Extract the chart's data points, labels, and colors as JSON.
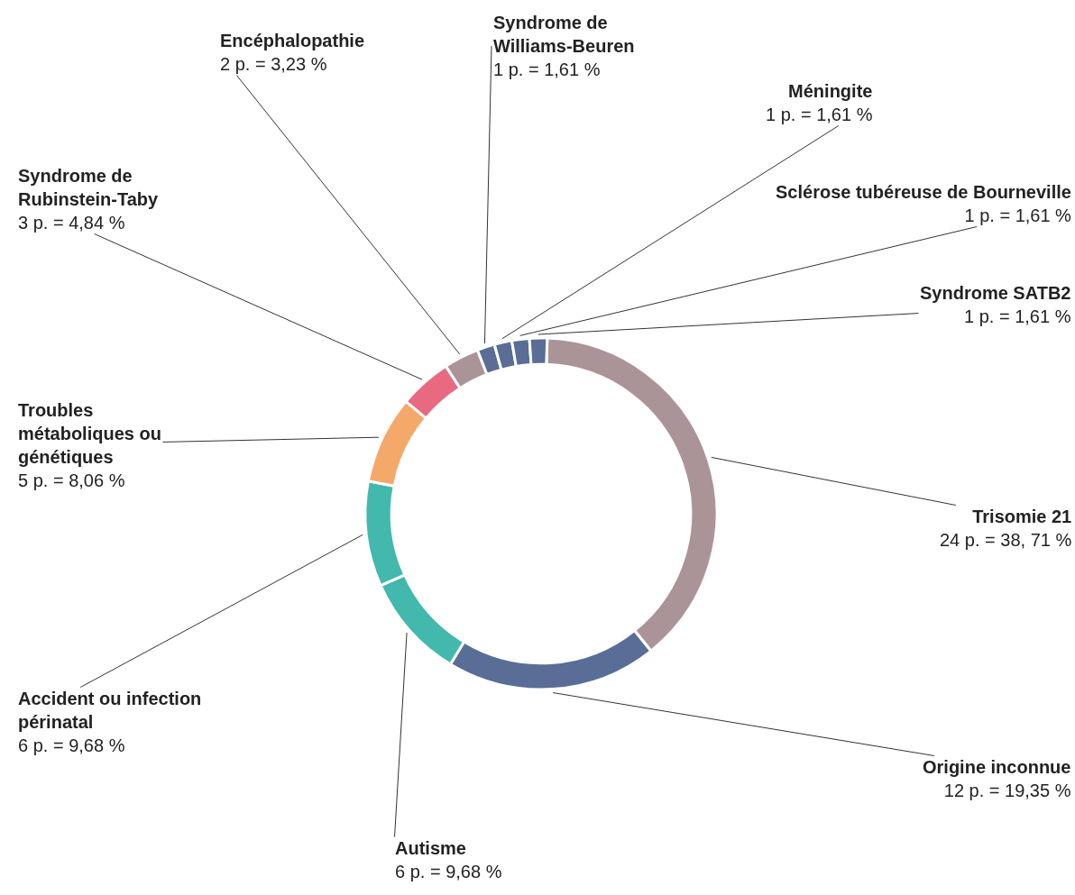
{
  "chart_data": {
    "type": "donut",
    "categories": [
      "Trisomie 21",
      "Origine inconnue",
      "Autisme",
      "Accident ou infection périnatal",
      "Troubles métaboliques ou génétiques",
      "Syndrome de Rubinstein-Taby",
      "Encéphalopathie",
      "Syndrome de Williams-Beuren",
      "Méningite",
      "Sclérose tubéreuse de Bourneville",
      "Syndrome SATB2"
    ],
    "values": [
      24,
      12,
      6,
      6,
      5,
      3,
      2,
      1,
      1,
      1,
      1
    ],
    "colors": [
      "#ab9498",
      "#596d96",
      "#43b8ad",
      "#43b8ad",
      "#f4a96a",
      "#e96a80",
      "#ab9498",
      "#596d96",
      "#596d96",
      "#596d96",
      "#596d96"
    ],
    "value_labels": [
      "24 p. = 38, 71 %",
      "12 p. = 19,35 %",
      "6 p. = 9,68 %",
      "6 p. = 9,68 %",
      "5 p. = 8,06 %",
      "3 p. = 4,84 %",
      "2 p. = 3,23 %",
      "1 p. = 1,61 %",
      "1 p. = 1,61 %",
      "1 p. = 1,61 %",
      "1 p. = 1,61 %"
    ],
    "legend": false
  }
}
